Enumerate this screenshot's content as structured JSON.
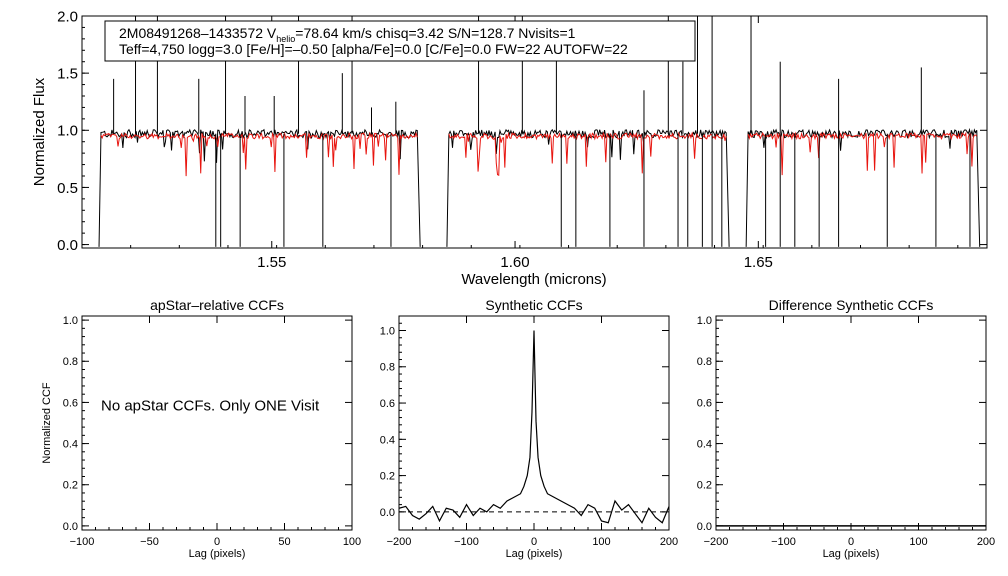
{
  "chart_data": [
    {
      "type": "line",
      "name": "spectrum",
      "xlabel": "Wavelength (microns)",
      "ylabel": "Normalized Flux",
      "xlim": [
        1.511,
        1.697
      ],
      "ylim": [
        -0.03,
        2.0
      ],
      "xticks": [
        {
          "value": 1.55,
          "label": "1.55"
        },
        {
          "value": 1.6,
          "label": "1.60"
        },
        {
          "value": 1.65,
          "label": "1.65"
        }
      ],
      "yticks": [
        {
          "value": 0.0,
          "label": "0.0"
        },
        {
          "value": 0.5,
          "label": "0.5"
        },
        {
          "value": 1.0,
          "label": "1.0"
        },
        {
          "value": 1.5,
          "label": "1.5"
        },
        {
          "value": 2.0,
          "label": "2.0"
        }
      ],
      "info_box": {
        "line1_prefix": "2M08491268–1433572  V",
        "line1_sub": "helio",
        "line1_suffix": "=78.64 km/s  chisq=3.42  S/N=128.7  Nvisits=1",
        "line2": "Teff=4,750 logg=3.0 [Fe/H]=–0.50 [alpha/Fe]=0.0 [C/Fe]=0.0 FW=22 AUTOFW=22"
      },
      "detector_ranges": [
        [
          1.5145,
          1.5805
        ],
        [
          1.586,
          1.644
        ],
        [
          1.6475,
          1.6955
        ]
      ],
      "spikes_up": [
        1.5175,
        1.522,
        1.5265,
        1.535,
        1.5405,
        1.5445,
        1.5505,
        1.5555,
        1.5645,
        1.5665,
        1.5705,
        1.5755,
        1.5925,
        1.6015,
        1.6085,
        1.6265,
        1.6315,
        1.6345,
        1.6375,
        1.6405,
        1.6485,
        1.6545,
        1.6665,
        1.6835
      ],
      "spike_heights": [
        1.45,
        2.0,
        2.0,
        1.45,
        2.0,
        1.3,
        1.3,
        2.0,
        1.5,
        2.0,
        1.2,
        1.25,
        2.0,
        2.0,
        1.9,
        1.35,
        2.0,
        1.6,
        2.0,
        2.0,
        2.0,
        1.6,
        1.45,
        1.55
      ],
      "drops": [
        1.5385,
        1.5395,
        1.5435,
        1.5525,
        1.5605,
        1.5745,
        1.6095,
        1.6125,
        1.6195,
        1.6265,
        1.6335,
        1.6355,
        1.6385,
        1.6405,
        1.6425,
        1.6515,
        1.6545,
        1.6575,
        1.6625,
        1.6665,
        1.6765,
        1.6865,
        1.6935
      ],
      "series": [
        {
          "name": "observed",
          "color": "#000000"
        },
        {
          "name": "synthetic",
          "color": "#e8150f"
        }
      ]
    },
    {
      "type": "line",
      "name": "apstar",
      "title": "apStar–relative CCFs",
      "xlabel": "Lag (pixels)",
      "ylabel": "Normalized CCF",
      "xlim": [
        -100,
        100
      ],
      "ylim": [
        -0.02,
        1.02
      ],
      "xticks": [
        {
          "value": -100,
          "label": "−100"
        },
        {
          "value": -50,
          "label": "−50"
        },
        {
          "value": 0,
          "label": "0"
        },
        {
          "value": 50,
          "label": "50"
        },
        {
          "value": 100,
          "label": "100"
        }
      ],
      "yticks": [
        {
          "value": 0.0,
          "label": "0.0"
        },
        {
          "value": 0.2,
          "label": "0.2"
        },
        {
          "value": 0.4,
          "label": "0.4"
        },
        {
          "value": 0.6,
          "label": "0.6"
        },
        {
          "value": 0.8,
          "label": "0.8"
        },
        {
          "value": 1.0,
          "label": "1.0"
        }
      ],
      "annotation": "No apStar CCFs.  Only ONE Visit",
      "annotation_xy": [
        -100,
        0.56
      ]
    },
    {
      "type": "line",
      "name": "synthetic",
      "title": "Synthetic CCFs",
      "xlabel": "Lag (pixels)",
      "ylabel": "",
      "xlim": [
        -200,
        200
      ],
      "ylim": [
        -0.1,
        1.08
      ],
      "xticks": [
        {
          "value": -200,
          "label": "−200"
        },
        {
          "value": -100,
          "label": "−100"
        },
        {
          "value": 0,
          "label": "0"
        },
        {
          "value": 100,
          "label": "100"
        },
        {
          "value": 200,
          "label": "200"
        }
      ],
      "yticks": [
        {
          "value": 0.0,
          "label": "0.0"
        },
        {
          "value": 0.2,
          "label": "0.2"
        },
        {
          "value": 0.4,
          "label": "0.4"
        },
        {
          "value": 0.6,
          "label": "0.6"
        },
        {
          "value": 0.8,
          "label": "0.8"
        },
        {
          "value": 1.0,
          "label": "1.0"
        }
      ],
      "baseline": 0.0,
      "ccf_x": [
        -200,
        -190,
        -180,
        -170,
        -160,
        -150,
        -140,
        -130,
        -120,
        -110,
        -100,
        -90,
        -80,
        -70,
        -60,
        -50,
        -40,
        -30,
        -20,
        -15,
        -10,
        -6,
        -3,
        0,
        3,
        6,
        10,
        15,
        20,
        30,
        40,
        50,
        60,
        70,
        80,
        90,
        100,
        110,
        120,
        130,
        140,
        150,
        160,
        170,
        180,
        190,
        200
      ],
      "ccf_y": [
        0.02,
        0.03,
        -0.02,
        -0.04,
        -0.01,
        0.03,
        -0.05,
        0.02,
        0.01,
        -0.03,
        0.04,
        -0.02,
        0.02,
        0.0,
        0.04,
        0.02,
        0.06,
        0.08,
        0.1,
        0.14,
        0.2,
        0.3,
        0.55,
        1.0,
        0.5,
        0.3,
        0.2,
        0.14,
        0.1,
        0.08,
        0.06,
        0.04,
        0.02,
        -0.02,
        0.04,
        0.02,
        -0.05,
        -0.06,
        0.06,
        0.01,
        0.04,
        -0.01,
        -0.06,
        0.02,
        -0.03,
        -0.06,
        0.03
      ]
    },
    {
      "type": "line",
      "name": "difference",
      "title": "Difference Synthetic CCFs",
      "xlabel": "Lag (pixels)",
      "ylabel": "",
      "xlim": [
        -200,
        200
      ],
      "ylim": [
        -0.02,
        1.02
      ],
      "xticks": [
        {
          "value": -200,
          "label": "−200"
        },
        {
          "value": -100,
          "label": "−100"
        },
        {
          "value": 0,
          "label": "0"
        },
        {
          "value": 100,
          "label": "100"
        },
        {
          "value": 200,
          "label": "200"
        }
      ],
      "yticks": [
        {
          "value": 0.0,
          "label": "0.0"
        },
        {
          "value": 0.2,
          "label": "0.2"
        },
        {
          "value": 0.4,
          "label": "0.4"
        },
        {
          "value": 0.6,
          "label": "0.6"
        },
        {
          "value": 0.8,
          "label": "0.8"
        },
        {
          "value": 1.0,
          "label": "1.0"
        }
      ],
      "baseline": 0.0
    }
  ]
}
